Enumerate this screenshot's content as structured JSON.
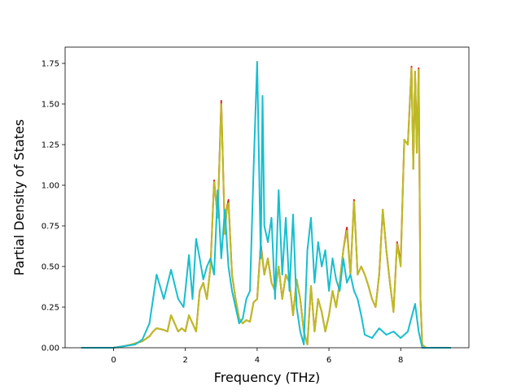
{
  "chart_data": {
    "type": "line",
    "title": "",
    "xlabel": "Frequency (THz)",
    "ylabel": "Partial Density of States",
    "xlim": [
      -1.35,
      9.9
    ],
    "ylim": [
      0,
      1.85
    ],
    "xticks": [
      0,
      2,
      4,
      6,
      8
    ],
    "yticks": [
      0.0,
      0.25,
      0.5,
      0.75,
      1.0,
      1.25,
      1.5,
      1.75
    ],
    "xtick_labels": [
      "0",
      "2",
      "4",
      "6",
      "8"
    ],
    "ytick_labels": [
      "0.00",
      "0.25",
      "0.50",
      "0.75",
      "1.00",
      "1.25",
      "1.50",
      "1.75"
    ],
    "grid": false,
    "legend": "none",
    "series": [
      {
        "color": "#d62728",
        "x": [
          -0.9,
          0,
          0.3,
          0.5,
          0.8,
          1.0,
          1.1,
          1.2,
          1.4,
          1.5,
          1.6,
          1.7,
          1.8,
          1.9,
          2.0,
          2.1,
          2.2,
          2.3,
          2.4,
          2.5,
          2.6,
          2.7,
          2.8,
          2.9,
          3.0,
          3.1,
          3.15,
          3.2,
          3.3,
          3.4,
          3.5,
          3.6,
          3.7,
          3.8,
          3.9,
          4.0,
          4.1,
          4.2,
          4.3,
          4.4,
          4.5,
          4.6,
          4.7,
          4.8,
          4.9,
          5.0,
          5.1,
          5.2,
          5.3,
          5.4,
          5.5,
          5.6,
          5.7,
          5.8,
          5.9,
          6.0,
          6.1,
          6.2,
          6.3,
          6.4,
          6.5,
          6.6,
          6.7,
          6.8,
          6.9,
          7.0,
          7.1,
          7.2,
          7.3,
          7.4,
          7.5,
          7.6,
          7.7,
          7.8,
          7.9,
          8.0,
          8.1,
          8.2,
          8.3,
          8.35,
          8.4,
          8.45,
          8.5,
          8.55,
          8.6,
          8.7,
          9.4
        ],
        "y": [
          0,
          0,
          0.01,
          0.02,
          0.04,
          0.07,
          0.1,
          0.12,
          0.11,
          0.1,
          0.2,
          0.15,
          0.1,
          0.12,
          0.1,
          0.2,
          0.15,
          0.1,
          0.35,
          0.4,
          0.3,
          0.5,
          1.03,
          0.8,
          1.52,
          0.7,
          0.85,
          0.91,
          0.45,
          0.3,
          0.18,
          0.15,
          0.17,
          0.16,
          0.28,
          0.3,
          0.64,
          0.45,
          0.55,
          0.4,
          0.35,
          0.5,
          0.3,
          0.45,
          0.4,
          0.2,
          0.42,
          0.3,
          0.1,
          0.02,
          0.38,
          0.1,
          0.3,
          0.22,
          0.1,
          0.2,
          0.35,
          0.25,
          0.4,
          0.6,
          0.74,
          0.45,
          0.91,
          0.45,
          0.5,
          0.45,
          0.38,
          0.3,
          0.25,
          0.45,
          0.85,
          0.6,
          0.4,
          0.22,
          0.65,
          0.52,
          1.28,
          1.25,
          1.73,
          1.1,
          1.7,
          1.2,
          1.72,
          0.3,
          0.02,
          0,
          0
        ]
      },
      {
        "color": "#bcbd22",
        "x": [
          -0.9,
          0,
          0.3,
          0.5,
          0.8,
          1.0,
          1.1,
          1.2,
          1.4,
          1.5,
          1.6,
          1.7,
          1.8,
          1.9,
          2.0,
          2.1,
          2.2,
          2.3,
          2.4,
          2.5,
          2.6,
          2.7,
          2.8,
          2.9,
          3.0,
          3.1,
          3.15,
          3.2,
          3.3,
          3.4,
          3.5,
          3.6,
          3.7,
          3.8,
          3.9,
          4.0,
          4.1,
          4.2,
          4.3,
          4.4,
          4.5,
          4.6,
          4.7,
          4.8,
          4.9,
          5.0,
          5.1,
          5.2,
          5.3,
          5.4,
          5.5,
          5.6,
          5.7,
          5.8,
          5.9,
          6.0,
          6.1,
          6.2,
          6.3,
          6.4,
          6.5,
          6.6,
          6.7,
          6.8,
          6.9,
          7.0,
          7.1,
          7.2,
          7.3,
          7.4,
          7.5,
          7.6,
          7.7,
          7.8,
          7.9,
          8.0,
          8.1,
          8.2,
          8.3,
          8.35,
          8.4,
          8.45,
          8.5,
          8.55,
          8.6,
          8.7,
          9.4
        ],
        "y": [
          0,
          0,
          0.01,
          0.02,
          0.04,
          0.07,
          0.1,
          0.12,
          0.11,
          0.1,
          0.2,
          0.15,
          0.1,
          0.12,
          0.1,
          0.2,
          0.15,
          0.1,
          0.35,
          0.4,
          0.3,
          0.5,
          1.02,
          0.8,
          1.5,
          0.7,
          0.84,
          0.89,
          0.45,
          0.3,
          0.18,
          0.15,
          0.17,
          0.16,
          0.28,
          0.3,
          0.62,
          0.45,
          0.55,
          0.4,
          0.35,
          0.5,
          0.3,
          0.45,
          0.4,
          0.2,
          0.42,
          0.3,
          0.1,
          0.02,
          0.38,
          0.1,
          0.3,
          0.22,
          0.1,
          0.2,
          0.35,
          0.25,
          0.4,
          0.6,
          0.72,
          0.45,
          0.9,
          0.45,
          0.5,
          0.45,
          0.38,
          0.3,
          0.25,
          0.45,
          0.85,
          0.6,
          0.4,
          0.22,
          0.64,
          0.5,
          1.28,
          1.25,
          1.72,
          1.1,
          1.7,
          1.2,
          1.71,
          0.3,
          0.02,
          0,
          0
        ]
      },
      {
        "color": "#17becf",
        "x": [
          -0.9,
          0,
          0.3,
          0.6,
          0.8,
          1.0,
          1.2,
          1.4,
          1.6,
          1.8,
          1.95,
          2.0,
          2.1,
          2.2,
          2.3,
          2.4,
          2.5,
          2.6,
          2.7,
          2.8,
          2.9,
          3.0,
          3.1,
          3.2,
          3.3,
          3.4,
          3.5,
          3.6,
          3.7,
          3.8,
          3.9,
          4.0,
          4.1,
          4.15,
          4.2,
          4.3,
          4.4,
          4.5,
          4.6,
          4.7,
          4.8,
          4.9,
          5.0,
          5.1,
          5.2,
          5.3,
          5.4,
          5.5,
          5.6,
          5.7,
          5.8,
          5.9,
          6.0,
          6.1,
          6.2,
          6.3,
          6.4,
          6.5,
          6.6,
          6.7,
          6.8,
          6.9,
          7.0,
          7.2,
          7.4,
          7.6,
          7.8,
          8.0,
          8.2,
          8.4,
          8.5,
          8.6,
          9.4
        ],
        "y": [
          0,
          0,
          0.01,
          0.02,
          0.05,
          0.15,
          0.45,
          0.3,
          0.48,
          0.3,
          0.25,
          0.35,
          0.57,
          0.3,
          0.67,
          0.55,
          0.42,
          0.5,
          0.55,
          0.45,
          0.97,
          0.55,
          0.85,
          0.5,
          0.35,
          0.25,
          0.15,
          0.18,
          0.3,
          0.35,
          1.1,
          1.76,
          0.55,
          1.55,
          0.75,
          0.65,
          0.8,
          0.3,
          0.97,
          0.45,
          0.8,
          0.35,
          0.82,
          0.25,
          0.1,
          0.02,
          0.6,
          0.8,
          0.4,
          0.65,
          0.5,
          0.6,
          0.35,
          0.55,
          0.42,
          0.35,
          0.55,
          0.4,
          0.45,
          0.35,
          0.3,
          0.2,
          0.08,
          0.06,
          0.12,
          0.08,
          0.1,
          0.06,
          0.1,
          0.27,
          0.1,
          0,
          0
        ]
      }
    ]
  }
}
